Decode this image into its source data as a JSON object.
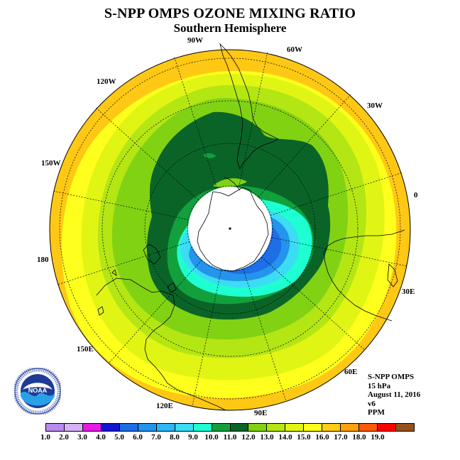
{
  "title": "S-NPP OMPS OZONE MIXING RATIO",
  "subtitle": "Southern Hemisphere",
  "longitude_labels": {
    "lon_0": "0",
    "lon_30e": "30E",
    "lon_60e": "60E",
    "lon_90e": "90E",
    "lon_120e": "120E",
    "lon_150e": "150E",
    "lon_180": "180",
    "lon_150w": "150W",
    "lon_120w": "120W",
    "lon_90w": "90W",
    "lon_60w": "60W",
    "lon_30w": "30W"
  },
  "info": {
    "instrument": "S-NPP OMPS",
    "level": "15 hPa",
    "date": "August 11, 2016",
    "version": "v6",
    "units": "PPM"
  },
  "logo_text": "NOAA",
  "colorbar": {
    "tick_labels": [
      "1.0",
      "2.0",
      "3.0",
      "4.0",
      "5.0",
      "6.0",
      "7.0",
      "8.0",
      "9.0",
      "10.0",
      "11.0",
      "12.0",
      "13.0",
      "14.0",
      "15.0",
      "16.0",
      "17.0",
      "18.0",
      "19.0"
    ],
    "colors": [
      "#b98cf0",
      "#d7b1f6",
      "#e61be6",
      "#1414d2",
      "#1e6ee6",
      "#2494ec",
      "#2cb8f4",
      "#3cdcf4",
      "#1effd2",
      "#12a03c",
      "#0a6428",
      "#82d214",
      "#b4e614",
      "#e1f514",
      "#ffff1e",
      "#ffcd14",
      "#ffa00a",
      "#ff5a0a",
      "#ff0000",
      "#96501e"
    ]
  },
  "map_colors": {
    "background": "#ffffff",
    "outer_orange": "#ffc814",
    "yellow": "#ffff1e",
    "light_yellow_green": "#e1f514",
    "yellow_green": "#b4e614",
    "light_green": "#82d214",
    "dark_green": "#0a6428",
    "green": "#12a03c",
    "teal": "#1effd2",
    "light_blue": "#3cdcf4",
    "blue": "#2494ec",
    "mid_blue": "#1e6ee6",
    "pole_fill": "#ffffff",
    "coast": "#000000"
  }
}
